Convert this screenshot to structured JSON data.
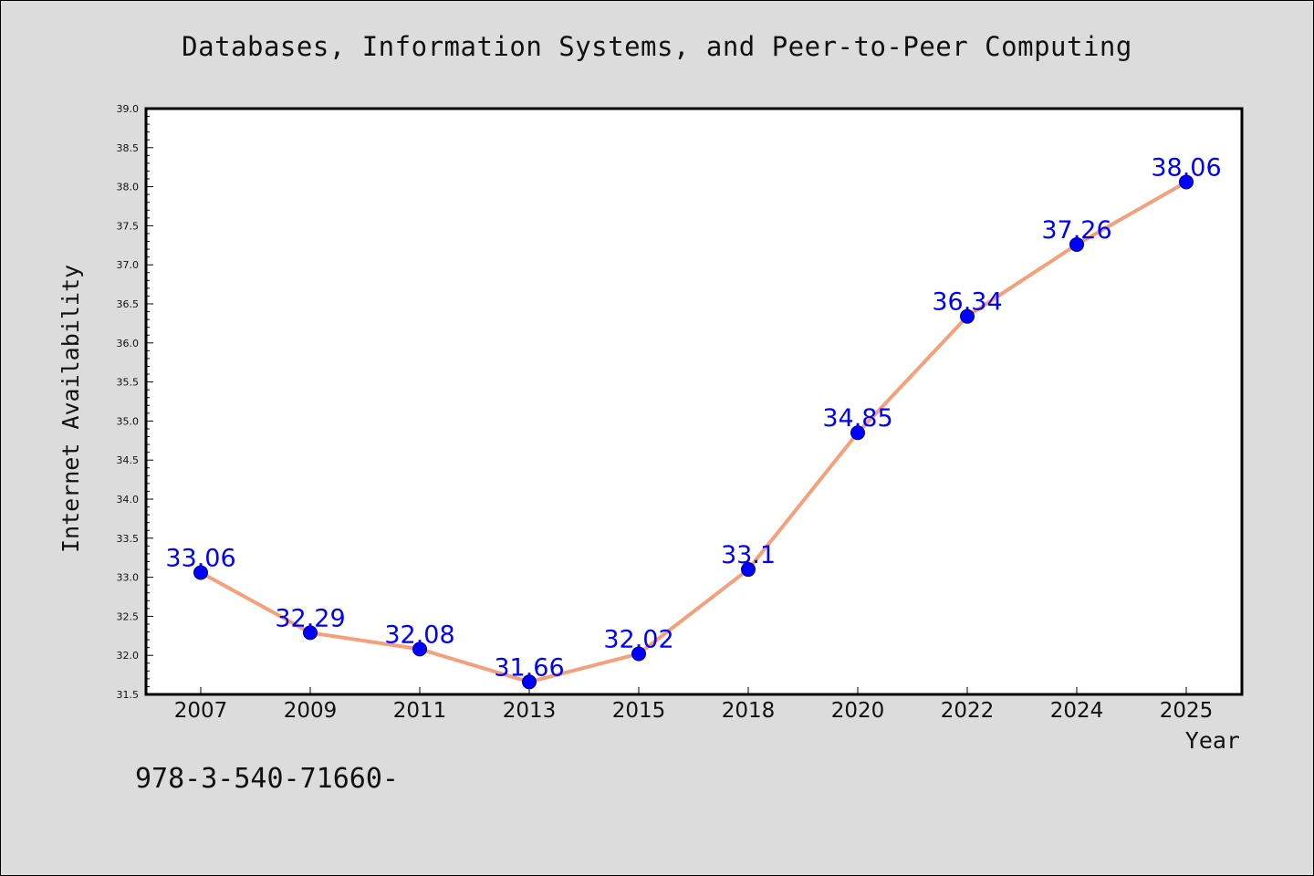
{
  "chart_data": {
    "type": "line",
    "title": "Databases, Information Systems, and Peer-to-Peer Computing",
    "xlabel": "Year",
    "ylabel": "Internet Availability",
    "categories": [
      "2007",
      "2009",
      "2011",
      "2013",
      "2015",
      "2018",
      "2020",
      "2022",
      "2024",
      "2025"
    ],
    "series": [
      {
        "values": [
          33.06,
          32.29,
          32.08,
          31.66,
          32.02,
          33.1,
          34.85,
          36.34,
          37.26,
          38.06
        ],
        "labels": [
          "33.06",
          "32.29",
          "32.08",
          "31.66",
          "32.02",
          "33.1",
          "34.85",
          "36.34",
          "37.26",
          "38.06"
        ]
      }
    ],
    "ylim": [
      31.5,
      39.0
    ],
    "yticks": [
      "31.5",
      "32.0",
      "32.5",
      "33.0",
      "33.5",
      "34.0",
      "34.5",
      "35.0",
      "35.5",
      "36.0",
      "36.5",
      "37.0",
      "37.5",
      "38.0",
      "38.5",
      "39.0"
    ],
    "grid": false,
    "colors": {
      "line": "#f4a07a",
      "marker": "#0000ff",
      "marker_edge": "#00007a",
      "label": "#0000ff",
      "background": "#dcdcdc",
      "plot_background": "#ffffff"
    }
  },
  "footer": {
    "isbn": "978-3-540-71660-"
  }
}
